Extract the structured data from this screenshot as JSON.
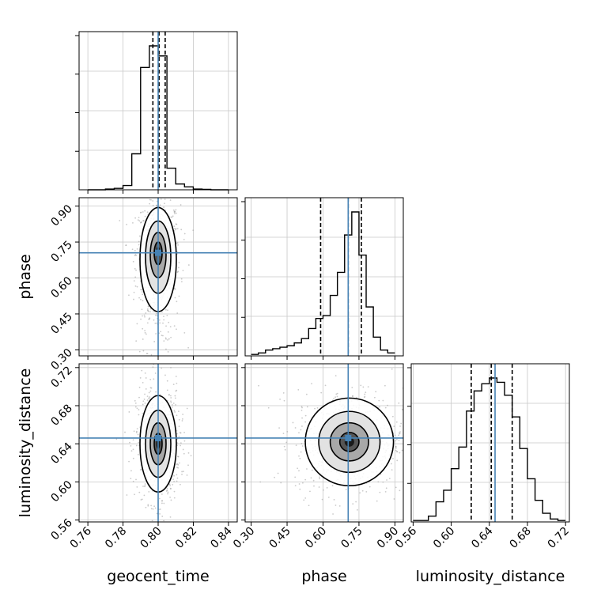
{
  "chart_data": {
    "type": "corner",
    "parameters": [
      "geocent_time",
      "phase",
      "luminosity_distance"
    ],
    "truths": [
      0.8,
      0.705,
      0.646
    ],
    "colors": {
      "truth": "#4682b4",
      "hist": "#000000",
      "grid": "#c8c8c8",
      "points": "#9e9e9e"
    },
    "axes": {
      "geocent_time": {
        "range": [
          0.755,
          0.845
        ],
        "ticks": [
          0.76,
          0.78,
          0.8,
          0.82,
          0.84
        ],
        "tick_labels": [
          "0.76",
          "0.78",
          "0.80",
          "0.82",
          "0.84"
        ]
      },
      "phase": {
        "range": [
          0.275,
          0.935
        ],
        "ticks": [
          0.3,
          0.45,
          0.6,
          0.75,
          0.9
        ],
        "tick_labels": [
          "0.30",
          "0.45",
          "0.60",
          "0.75",
          "0.90"
        ]
      },
      "luminosity_distance": {
        "range": [
          0.558,
          0.724
        ],
        "ticks": [
          0.56,
          0.6,
          0.64,
          0.68,
          0.72
        ],
        "tick_labels": [
          "0.56",
          "0.60",
          "0.64",
          "0.68",
          "0.72"
        ]
      }
    },
    "histograms": {
      "geocent_time": {
        "edges": [
          0.76,
          0.765,
          0.77,
          0.775,
          0.78,
          0.785,
          0.79,
          0.795,
          0.8,
          0.805,
          0.81,
          0.815,
          0.82,
          0.825,
          0.83,
          0.835,
          0.84
        ],
        "counts": [
          0,
          0,
          0.005,
          0.01,
          0.03,
          0.25,
          0.85,
          1.0,
          0.93,
          0.15,
          0.04,
          0.02,
          0.005,
          0.003,
          0,
          0
        ],
        "quantiles": [
          0.797,
          0.8005,
          0.804
        ]
      },
      "phase": {
        "edges": [
          0.3,
          0.33,
          0.36,
          0.39,
          0.42,
          0.45,
          0.48,
          0.51,
          0.54,
          0.57,
          0.6,
          0.63,
          0.66,
          0.69,
          0.72,
          0.75,
          0.78,
          0.81,
          0.84,
          0.87,
          0.9
        ],
        "counts": [
          0.01,
          0.02,
          0.04,
          0.05,
          0.06,
          0.07,
          0.09,
          0.12,
          0.19,
          0.26,
          0.28,
          0.42,
          0.58,
          0.84,
          1.0,
          0.7,
          0.34,
          0.13,
          0.04,
          0.02
        ],
        "quantiles": [
          0.59,
          0.705,
          0.76
        ]
      },
      "luminosity_distance": {
        "edges": [
          0.56,
          0.568,
          0.576,
          0.584,
          0.592,
          0.6,
          0.608,
          0.616,
          0.624,
          0.632,
          0.64,
          0.648,
          0.656,
          0.664,
          0.672,
          0.68,
          0.688,
          0.696,
          0.704,
          0.712,
          0.72
        ],
        "counts": [
          0.01,
          0.01,
          0.04,
          0.14,
          0.22,
          0.37,
          0.52,
          0.77,
          0.91,
          0.96,
          1.0,
          0.97,
          0.88,
          0.73,
          0.51,
          0.3,
          0.15,
          0.06,
          0.02,
          0.01
        ],
        "quantiles": [
          0.621,
          0.642,
          0.664
        ]
      }
    },
    "scatter_2d": [
      {
        "x": "geocent_time",
        "y": "phase",
        "center": [
          0.8,
          0.71
        ],
        "spread": [
          0.0045,
          0.08
        ],
        "skew_y": -1
      },
      {
        "x": "geocent_time",
        "y": "luminosity_distance",
        "center": [
          0.8,
          0.64
        ],
        "spread": [
          0.0045,
          0.022
        ],
        "skew_y": 0
      },
      {
        "x": "phase",
        "y": "luminosity_distance",
        "center": [
          0.71,
          0.642
        ],
        "spread": [
          0.08,
          0.02
        ],
        "skew_y": 0
      }
    ]
  }
}
